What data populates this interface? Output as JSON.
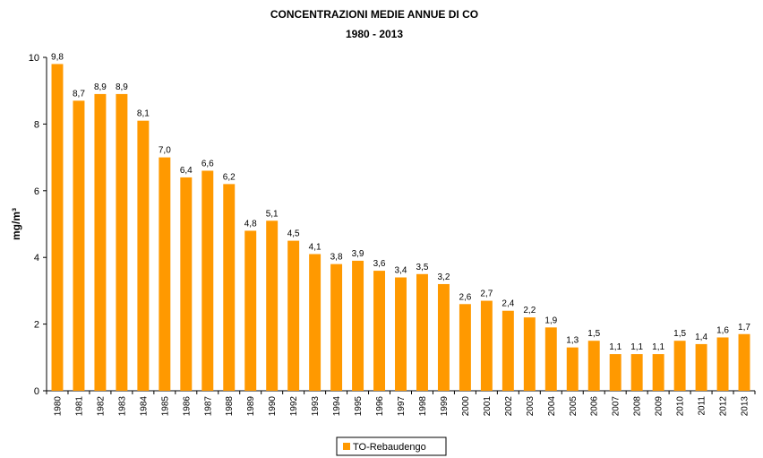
{
  "chart_data": {
    "type": "bar",
    "title": "CONCENTRAZIONI MEDIE ANNUE DI CO",
    "subtitle": "1980 - 2013",
    "y_label": "mg/m³",
    "categories": [
      "1980",
      "1981",
      "1982",
      "1983",
      "1984",
      "1985",
      "1986",
      "1987",
      "1988",
      "1989",
      "1990",
      "1992",
      "1993",
      "1994",
      "1995",
      "1996",
      "1997",
      "1998",
      "1999",
      "2000",
      "2001",
      "2002",
      "2003",
      "2004",
      "2005",
      "2006",
      "2007",
      "2008",
      "2009",
      "2010",
      "2011",
      "2012",
      "2013"
    ],
    "series": [
      {
        "name": "TO-Rebaudengo",
        "color": "#ff9900",
        "values": [
          9.8,
          8.7,
          8.9,
          8.9,
          8.1,
          7.0,
          6.4,
          6.6,
          6.2,
          4.8,
          5.1,
          4.5,
          4.1,
          3.8,
          3.9,
          3.6,
          3.4,
          3.5,
          3.2,
          2.6,
          2.7,
          2.4,
          2.2,
          1.9,
          1.3,
          1.5,
          1.1,
          1.1,
          1.1,
          1.5,
          1.4,
          1.6,
          1.7
        ],
        "value_labels": [
          "9,8",
          "8,7",
          "8,9",
          "8,9",
          "8,1",
          "7,0",
          "6,4",
          "6,6",
          "6,2",
          "4,8",
          "5,1",
          "4,5",
          "4,1",
          "3,8",
          "3,9",
          "3,6",
          "3,4",
          "3,5",
          "3,2",
          "2,6",
          "2,7",
          "2,4",
          "2,2",
          "1,9",
          "1,3",
          "1,5",
          "1,1",
          "1,1",
          "1,1",
          "1,5",
          "1,4",
          "1,6",
          "1,7"
        ]
      }
    ],
    "ylim": [
      0,
      10
    ],
    "yticks": [
      0,
      2,
      4,
      6,
      8,
      10
    ],
    "grid": false
  }
}
